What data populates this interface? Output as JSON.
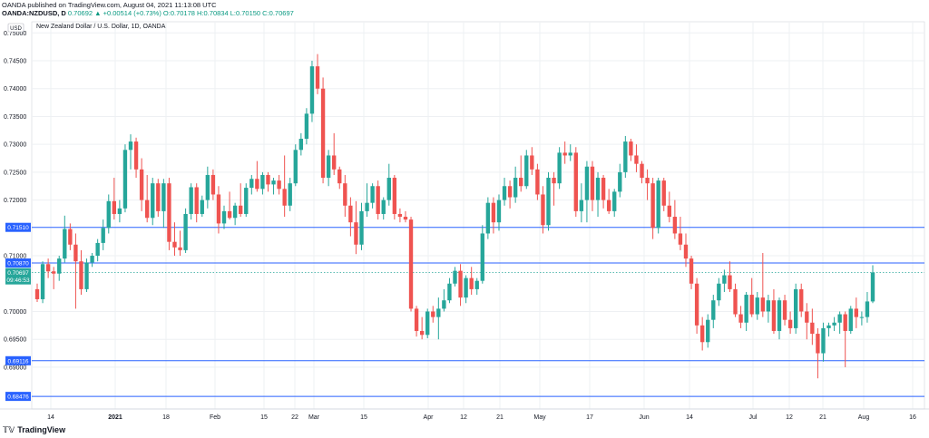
{
  "header": {
    "line1": "OANDA published on TradingView.com, August 04, 2021 11:13:08 UTC",
    "line2_prefix": "OANDA:NZDUSD, D ",
    "line2_values": "0.70692 ▲ +0.00514 (+0.73%) O:0.70178 H:0.70834 L:0.70150 C:0.70697"
  },
  "colors": {
    "up": "#26a69a",
    "down": "#ef5350",
    "hline": "#2962ff",
    "grid": "#eef0f3",
    "axis_text": "#131722"
  },
  "chart_data": {
    "type": "candlestick",
    "title": "New Zealand Dollar / U.S. Dollar, 1D, OANDA",
    "currency_label": "USD",
    "ylim": [
      0.6825,
      0.752
    ],
    "y_ticks": [
      0.75,
      0.745,
      0.74,
      0.735,
      0.73,
      0.725,
      0.72,
      0.71,
      0.7,
      0.695,
      0.69
    ],
    "y_tick_labels": [
      "0.75000",
      "0.74500",
      "0.74000",
      "0.73500",
      "0.73000",
      "0.72500",
      "0.72000",
      "0.71000",
      "0.70000",
      "0.69500",
      "0.69000"
    ],
    "x_tick_labels": [
      "14",
      "2021",
      "18",
      "Feb",
      "15",
      "22",
      "Mar",
      "15",
      "Apr",
      "12",
      "21",
      "May",
      "17",
      "Jun",
      "14",
      "Jul",
      "12",
      "21",
      "Aug",
      "16"
    ],
    "horizontal_levels": [
      {
        "value": 0.7151,
        "label": "0.71510"
      },
      {
        "value": 0.7087,
        "label": "0.70870"
      },
      {
        "value": 0.69116,
        "label": "0.69116"
      },
      {
        "value": 0.68476,
        "label": "0.68476"
      }
    ],
    "last_price": {
      "value": 0.70697,
      "label": "0.70697",
      "countdown": "09:46:53"
    },
    "ohlc": [
      [
        0.704,
        0.705,
        0.7017,
        0.7022
      ],
      [
        0.7022,
        0.709,
        0.7015,
        0.7085
      ],
      [
        0.7085,
        0.7095,
        0.706,
        0.7072
      ],
      [
        0.7072,
        0.708,
        0.704,
        0.7068
      ],
      [
        0.7068,
        0.71,
        0.7055,
        0.7095
      ],
      [
        0.7095,
        0.7172,
        0.7088,
        0.7148
      ],
      [
        0.7148,
        0.7158,
        0.711,
        0.712
      ],
      [
        0.712,
        0.714,
        0.7005,
        0.709
      ],
      [
        0.709,
        0.711,
        0.703,
        0.704
      ],
      [
        0.704,
        0.7095,
        0.7035,
        0.7088
      ],
      [
        0.7088,
        0.7105,
        0.708,
        0.71
      ],
      [
        0.71,
        0.713,
        0.709,
        0.7123
      ],
      [
        0.7123,
        0.7165,
        0.711,
        0.715
      ],
      [
        0.715,
        0.721,
        0.714,
        0.7198
      ],
      [
        0.7198,
        0.724,
        0.7165,
        0.7175
      ],
      [
        0.7175,
        0.72,
        0.716,
        0.7185
      ],
      [
        0.7185,
        0.73,
        0.7178,
        0.729
      ],
      [
        0.729,
        0.7318,
        0.7255,
        0.7305
      ],
      [
        0.7305,
        0.7312,
        0.724,
        0.7255
      ],
      [
        0.7255,
        0.7275,
        0.718,
        0.72
      ],
      [
        0.72,
        0.7245,
        0.716,
        0.7168
      ],
      [
        0.7168,
        0.724,
        0.7155,
        0.723
      ],
      [
        0.723,
        0.7238,
        0.717,
        0.718
      ],
      [
        0.718,
        0.7238,
        0.715,
        0.723
      ],
      [
        0.723,
        0.724,
        0.711,
        0.7125
      ],
      [
        0.7125,
        0.716,
        0.71,
        0.7115
      ],
      [
        0.7115,
        0.7145,
        0.71,
        0.711
      ],
      [
        0.711,
        0.7185,
        0.7105,
        0.7175
      ],
      [
        0.7175,
        0.723,
        0.7165,
        0.7223
      ],
      [
        0.7223,
        0.723,
        0.716,
        0.7175
      ],
      [
        0.7175,
        0.7208,
        0.717,
        0.72
      ],
      [
        0.72,
        0.726,
        0.7185,
        0.7245
      ],
      [
        0.7245,
        0.7255,
        0.72,
        0.721
      ],
      [
        0.721,
        0.7225,
        0.714,
        0.7158
      ],
      [
        0.7158,
        0.719,
        0.7148,
        0.718
      ],
      [
        0.718,
        0.7215,
        0.7165,
        0.7168
      ],
      [
        0.7168,
        0.7195,
        0.7155,
        0.719
      ],
      [
        0.719,
        0.723,
        0.717,
        0.7175
      ],
      [
        0.7175,
        0.723,
        0.717,
        0.7222
      ],
      [
        0.7222,
        0.7245,
        0.721,
        0.7238
      ],
      [
        0.7238,
        0.727,
        0.7215,
        0.722
      ],
      [
        0.722,
        0.725,
        0.721,
        0.7245
      ],
      [
        0.7245,
        0.725,
        0.7215,
        0.7228
      ],
      [
        0.7228,
        0.724,
        0.721,
        0.7235
      ],
      [
        0.7235,
        0.7245,
        0.721,
        0.722
      ],
      [
        0.722,
        0.728,
        0.717,
        0.719
      ],
      [
        0.719,
        0.724,
        0.718,
        0.723
      ],
      [
        0.723,
        0.73,
        0.7225,
        0.729
      ],
      [
        0.729,
        0.732,
        0.728,
        0.731
      ],
      [
        0.731,
        0.7365,
        0.73,
        0.7355
      ],
      [
        0.7355,
        0.745,
        0.734,
        0.744
      ],
      [
        0.744,
        0.7462,
        0.739,
        0.74
      ],
      [
        0.74,
        0.742,
        0.723,
        0.724
      ],
      [
        0.724,
        0.729,
        0.7225,
        0.728
      ],
      [
        0.728,
        0.732,
        0.7245,
        0.7255
      ],
      [
        0.7255,
        0.726,
        0.722,
        0.723
      ],
      [
        0.723,
        0.7245,
        0.717,
        0.719
      ],
      [
        0.719,
        0.7205,
        0.7135,
        0.716
      ],
      [
        0.716,
        0.7198,
        0.7103,
        0.712
      ],
      [
        0.712,
        0.7195,
        0.711,
        0.718
      ],
      [
        0.718,
        0.723,
        0.717,
        0.7195
      ],
      [
        0.7195,
        0.723,
        0.7185,
        0.7225
      ],
      [
        0.7225,
        0.7235,
        0.7165,
        0.7175
      ],
      [
        0.7175,
        0.7205,
        0.7165,
        0.72
      ],
      [
        0.72,
        0.7265,
        0.719,
        0.724
      ],
      [
        0.724,
        0.7245,
        0.7165,
        0.7175
      ],
      [
        0.7175,
        0.7185,
        0.716,
        0.717
      ],
      [
        0.717,
        0.718,
        0.716,
        0.7165
      ],
      [
        0.7165,
        0.717,
        0.7,
        0.7005
      ],
      [
        0.7005,
        0.701,
        0.6955,
        0.6965
      ],
      [
        0.6965,
        0.699,
        0.695,
        0.6958
      ],
      [
        0.6958,
        0.7005,
        0.6952,
        0.7
      ],
      [
        0.7,
        0.701,
        0.698,
        0.699
      ],
      [
        0.699,
        0.7025,
        0.695,
        0.7005
      ],
      [
        0.7005,
        0.704,
        0.7,
        0.702
      ],
      [
        0.702,
        0.706,
        0.7015,
        0.705
      ],
      [
        0.705,
        0.708,
        0.7045,
        0.7073
      ],
      [
        0.7073,
        0.7085,
        0.701,
        0.7025
      ],
      [
        0.7025,
        0.7065,
        0.7015,
        0.706
      ],
      [
        0.706,
        0.708,
        0.703,
        0.704
      ],
      [
        0.704,
        0.706,
        0.703,
        0.7055
      ],
      [
        0.7055,
        0.7155,
        0.705,
        0.714
      ],
      [
        0.714,
        0.7205,
        0.713,
        0.7195
      ],
      [
        0.7195,
        0.7205,
        0.714,
        0.716
      ],
      [
        0.716,
        0.721,
        0.7145,
        0.72
      ],
      [
        0.72,
        0.724,
        0.719,
        0.7225
      ],
      [
        0.7225,
        0.7235,
        0.7185,
        0.7205
      ],
      [
        0.7205,
        0.726,
        0.7195,
        0.724
      ],
      [
        0.724,
        0.728,
        0.7215,
        0.7225
      ],
      [
        0.7225,
        0.729,
        0.722,
        0.728
      ],
      [
        0.728,
        0.7295,
        0.7245,
        0.7255
      ],
      [
        0.7255,
        0.7265,
        0.72,
        0.721
      ],
      [
        0.721,
        0.7225,
        0.714,
        0.7155
      ],
      [
        0.7155,
        0.725,
        0.7145,
        0.724
      ],
      [
        0.724,
        0.725,
        0.719,
        0.723
      ],
      [
        0.723,
        0.7295,
        0.722,
        0.7285
      ],
      [
        0.7285,
        0.7305,
        0.7265,
        0.728
      ],
      [
        0.728,
        0.73,
        0.727,
        0.7285
      ],
      [
        0.7285,
        0.7295,
        0.717,
        0.718
      ],
      [
        0.718,
        0.723,
        0.716,
        0.72
      ],
      [
        0.72,
        0.727,
        0.716,
        0.726
      ],
      [
        0.726,
        0.727,
        0.718,
        0.72
      ],
      [
        0.72,
        0.725,
        0.717,
        0.724
      ],
      [
        0.724,
        0.7245,
        0.7185,
        0.72
      ],
      [
        0.72,
        0.722,
        0.7175,
        0.718
      ],
      [
        0.718,
        0.722,
        0.717,
        0.7215
      ],
      [
        0.7215,
        0.7265,
        0.7205,
        0.725
      ],
      [
        0.725,
        0.7315,
        0.724,
        0.7305
      ],
      [
        0.7305,
        0.731,
        0.727,
        0.728
      ],
      [
        0.728,
        0.73,
        0.725,
        0.7265
      ],
      [
        0.7265,
        0.727,
        0.723,
        0.724
      ],
      [
        0.724,
        0.7255,
        0.72,
        0.723
      ],
      [
        0.723,
        0.724,
        0.713,
        0.715
      ],
      [
        0.715,
        0.724,
        0.714,
        0.7235
      ],
      [
        0.7235,
        0.724,
        0.718,
        0.719
      ],
      [
        0.719,
        0.7215,
        0.716,
        0.717
      ],
      [
        0.717,
        0.72,
        0.713,
        0.714
      ],
      [
        0.714,
        0.717,
        0.711,
        0.712
      ],
      [
        0.712,
        0.714,
        0.708,
        0.7095
      ],
      [
        0.7095,
        0.71,
        0.704,
        0.705
      ],
      [
        0.705,
        0.706,
        0.696,
        0.6975
      ],
      [
        0.6975,
        0.699,
        0.693,
        0.6945
      ],
      [
        0.6945,
        0.6995,
        0.6935,
        0.6985
      ],
      [
        0.6985,
        0.703,
        0.697,
        0.702
      ],
      [
        0.702,
        0.706,
        0.701,
        0.705
      ],
      [
        0.705,
        0.7075,
        0.7035,
        0.7065
      ],
      [
        0.7065,
        0.709,
        0.7035,
        0.704
      ],
      [
        0.704,
        0.705,
        0.699,
        0.6995
      ],
      [
        0.6995,
        0.701,
        0.697,
        0.698
      ],
      [
        0.698,
        0.7035,
        0.6965,
        0.703
      ],
      [
        0.703,
        0.706,
        0.699,
        0.6995
      ],
      [
        0.6995,
        0.7035,
        0.6985,
        0.7025
      ],
      [
        0.7025,
        0.7105,
        0.699,
        0.7
      ],
      [
        0.7,
        0.703,
        0.698,
        0.702
      ],
      [
        0.702,
        0.704,
        0.696,
        0.6965
      ],
      [
        0.6965,
        0.7025,
        0.695,
        0.702
      ],
      [
        0.702,
        0.703,
        0.6975,
        0.6985
      ],
      [
        0.6985,
        0.7,
        0.696,
        0.697
      ],
      [
        0.697,
        0.705,
        0.696,
        0.704
      ],
      [
        0.704,
        0.705,
        0.699,
        0.7
      ],
      [
        0.7,
        0.7015,
        0.695,
        0.698
      ],
      [
        0.698,
        0.7005,
        0.694,
        0.696
      ],
      [
        0.696,
        0.697,
        0.688,
        0.6925
      ],
      [
        0.6925,
        0.698,
        0.691,
        0.697
      ],
      [
        0.697,
        0.698,
        0.6955,
        0.6975
      ],
      [
        0.6975,
        0.699,
        0.6965,
        0.698
      ],
      [
        0.698,
        0.7,
        0.696,
        0.6995
      ],
      [
        0.6995,
        0.7,
        0.69,
        0.6965
      ],
      [
        0.6965,
        0.701,
        0.696,
        0.7005
      ],
      [
        0.7005,
        0.7025,
        0.697,
        0.699
      ],
      [
        0.699,
        0.7,
        0.6975,
        0.699
      ],
      [
        0.699,
        0.7035,
        0.698,
        0.7018
      ],
      [
        0.7018,
        0.7083,
        0.7015,
        0.707
      ]
    ]
  }
}
